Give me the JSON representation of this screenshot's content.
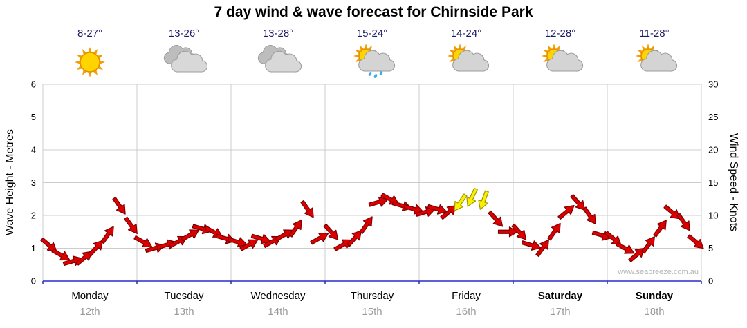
{
  "title": "7 day wind & wave forecast for Chirnside Park",
  "watermark": "www.seabreeze.com.au",
  "axes": {
    "left_title": "Wave Height - Metres",
    "right_title": "Wind Speed - Knots",
    "left_ticks": [
      0,
      1,
      2,
      3,
      4,
      5,
      6
    ],
    "right_ticks": [
      0,
      5,
      10,
      15,
      20,
      25,
      30
    ]
  },
  "days": [
    {
      "name": "Monday",
      "date": "12th",
      "temp": "8-27°",
      "icon": "sunny",
      "bold": false
    },
    {
      "name": "Tuesday",
      "date": "13th",
      "temp": "13-26°",
      "icon": "cloudy",
      "bold": false
    },
    {
      "name": "Wednesday",
      "date": "14th",
      "temp": "13-28°",
      "icon": "cloudy",
      "bold": false
    },
    {
      "name": "Thursday",
      "date": "15th",
      "temp": "15-24°",
      "icon": "sun-showers",
      "bold": false
    },
    {
      "name": "Friday",
      "date": "16th",
      "temp": "14-24°",
      "icon": "partly-cloudy",
      "bold": false
    },
    {
      "name": "Saturday",
      "date": "17th",
      "temp": "12-28°",
      "icon": "partly-cloudy",
      "bold": true
    },
    {
      "name": "Sunday",
      "date": "18th",
      "temp": "11-28°",
      "icon": "partly-cloudy",
      "bold": true
    }
  ],
  "chart_data": {
    "type": "line",
    "series_name": "Wind forecast arrows (speed in knots, direction by arrow angle)",
    "points_per_day": 8,
    "x_days": [
      "Monday 12th",
      "Tuesday 13th",
      "Wednesday 14th",
      "Thursday 15th",
      "Friday 16th",
      "Saturday 17th",
      "Sunday 18th"
    ],
    "knots": [
      5.5,
      4.0,
      3.0,
      3.5,
      5.0,
      7.0,
      11.5,
      8.5,
      6.0,
      5.0,
      5.5,
      6.0,
      7.0,
      8.0,
      7.5,
      6.5,
      6.0,
      5.5,
      6.5,
      6.0,
      7.0,
      8.0,
      11.0,
      6.5,
      7.5,
      5.5,
      6.5,
      8.5,
      12.0,
      12.5,
      11.5,
      11.0,
      10.5,
      11.0,
      10.5,
      12.0,
      12.8,
      12.4,
      9.5,
      7.5,
      7.5,
      5.5,
      5.0,
      7.5,
      10.5,
      12.0,
      10.0,
      7.0,
      6.5,
      5.0,
      4.0,
      5.5,
      8.0,
      10.5,
      9.0,
      6.0
    ],
    "dir_deg": [
      40,
      29,
      -16,
      -40,
      -48,
      -55,
      55,
      54,
      29,
      -16,
      -16,
      -29,
      -29,
      16,
      29,
      16,
      16,
      -29,
      16,
      -29,
      -29,
      -55,
      55,
      -29,
      48,
      -29,
      -48,
      -55,
      -16,
      29,
      16,
      16,
      -16,
      16,
      -40,
      125,
      115,
      110,
      48,
      0,
      48,
      16,
      -54,
      -55,
      -40,
      48,
      55,
      16,
      40,
      29,
      -40,
      -54,
      -54,
      40,
      55,
      40
    ],
    "yellow_indices": [
      35,
      36,
      37
    ],
    "ylim_knots": [
      0,
      30
    ],
    "ylim_metres": [
      0,
      6
    ],
    "grid": true,
    "legend": "none",
    "colors": {
      "arrow": "#dd0000",
      "arrow_outline": "#7a0000",
      "arrow_yellow": "#f8f000",
      "arrow_yellow_outline": "#a39400",
      "grid": "#cccccc",
      "axis": "#2b2bc8",
      "tick_text": "#000000"
    }
  }
}
